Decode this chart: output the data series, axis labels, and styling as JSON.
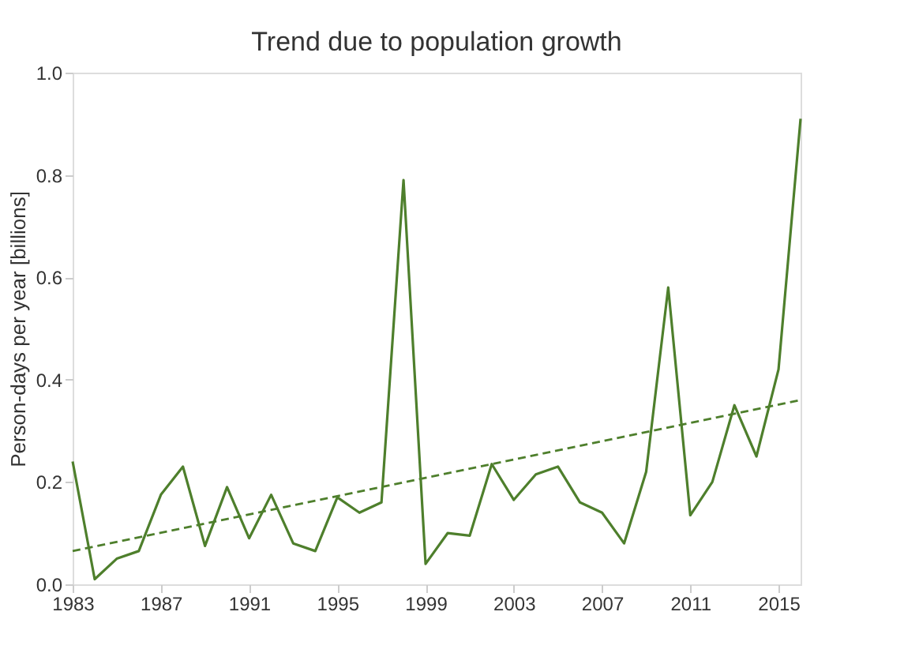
{
  "chart_data": {
    "type": "line",
    "title": "Trend due to population growth",
    "ylabel": "Person-days per year [billions]",
    "x": [
      1983,
      1984,
      1985,
      1986,
      1987,
      1988,
      1989,
      1990,
      1991,
      1992,
      1993,
      1994,
      1995,
      1996,
      1997,
      1998,
      1999,
      2000,
      2001,
      2002,
      2003,
      2004,
      2005,
      2006,
      2007,
      2008,
      2009,
      2010,
      2011,
      2012,
      2013,
      2014,
      2015,
      2016
    ],
    "series": [
      {
        "color": "#4e7f2c",
        "values": [
          0.24,
          0.01,
          0.05,
          0.065,
          0.175,
          0.23,
          0.075,
          0.19,
          0.09,
          0.175,
          0.08,
          0.065,
          0.17,
          0.14,
          0.16,
          0.79,
          0.04,
          0.1,
          0.095,
          0.235,
          0.165,
          0.215,
          0.23,
          0.16,
          0.14,
          0.08,
          0.22,
          0.58,
          0.135,
          0.2,
          0.35,
          0.25,
          0.42,
          0.91
        ]
      },
      {
        "color": "#4e7f2c",
        "type": "line",
        "line_style": "dashed",
        "x": [
          1983,
          2016
        ],
        "values": [
          0.065,
          0.36
        ]
      }
    ],
    "xlim": [
      1983,
      2016
    ],
    "xticks": [
      1983,
      1987,
      1991,
      1995,
      1999,
      2003,
      2007,
      2011,
      2015
    ],
    "ylim": [
      0,
      1
    ],
    "yticks": [
      {
        "value": 0,
        "label": "0.0"
      },
      0.2,
      0.4,
      0.6,
      0.8,
      {
        "value": 1,
        "label": "1.0"
      }
    ],
    "grid": false
  }
}
